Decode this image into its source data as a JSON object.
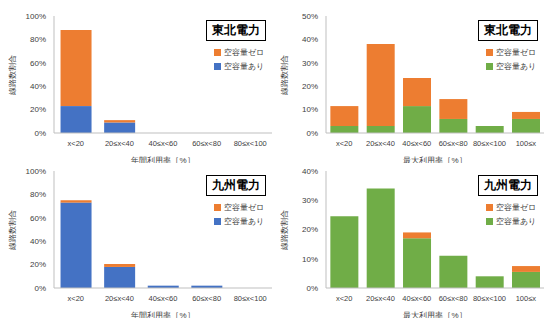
{
  "chart_data": [
    {
      "type": "bar",
      "title": "東北電力",
      "x_label": "年間利用率［%］",
      "y_label": "線路数割合",
      "categories": [
        "x<20",
        "20≤x<40",
        "40≤x<60",
        "60≤x<80",
        "80≤x<100"
      ],
      "series": [
        {
          "name": "空容量あり",
          "color": "#4472c4",
          "values": [
            23,
            9,
            0,
            0,
            0
          ]
        },
        {
          "name": "空容量ゼロ",
          "color": "#ed7d31",
          "values": [
            65,
            2,
            0,
            0,
            0
          ]
        }
      ],
      "ylim": [
        0,
        100
      ],
      "yticks": [
        {
          "value": 0,
          "label": "0%"
        },
        {
          "value": 20,
          "label": "20%"
        },
        {
          "value": 40,
          "label": "40%"
        },
        {
          "value": 60,
          "label": "60%"
        },
        {
          "value": 80,
          "label": "80%"
        },
        {
          "value": 100,
          "label": "100%"
        }
      ],
      "stacked": true,
      "legend": "upper right",
      "grid": false
    },
    {
      "type": "bar",
      "title": "東北電力",
      "x_label": "最大利用率［%］",
      "y_label": "線路数割合",
      "categories": [
        "x<20",
        "20≤x<40",
        "40≤x<60",
        "60≤x<80",
        "80≤x<100",
        "100≤x"
      ],
      "series": [
        {
          "name": "空容量あり",
          "color": "#70ad47",
          "values": [
            3,
            3,
            11.5,
            6,
            3,
            6
          ]
        },
        {
          "name": "空容量ゼロ",
          "color": "#ed7d31",
          "values": [
            8.5,
            35,
            12,
            8.5,
            0,
            3
          ]
        }
      ],
      "ylim": [
        0,
        50
      ],
      "yticks": [
        {
          "value": 0,
          "label": "0%"
        },
        {
          "value": 10,
          "label": "10%"
        },
        {
          "value": 20,
          "label": "20%"
        },
        {
          "value": 30,
          "label": "30%"
        },
        {
          "value": 40,
          "label": "40%"
        },
        {
          "value": 50,
          "label": "50%"
        }
      ],
      "stacked": true,
      "legend": "upper right",
      "grid": false
    },
    {
      "type": "bar",
      "title": "九州電力",
      "x_label": "年間利用率［%］",
      "y_label": "線路数割合",
      "categories": [
        "x<20",
        "20≤x<40",
        "40≤x<60",
        "60≤x<80",
        "80≤x<100"
      ],
      "series": [
        {
          "name": "空容量あり",
          "color": "#4472c4",
          "values": [
            73,
            18,
            2,
            2,
            0
          ]
        },
        {
          "name": "空容量ゼロ",
          "color": "#ed7d31",
          "values": [
            2,
            2.5,
            0,
            0,
            0
          ]
        }
      ],
      "ylim": [
        0,
        100
      ],
      "yticks": [
        {
          "value": 0,
          "label": "0%"
        },
        {
          "value": 20,
          "label": "20%"
        },
        {
          "value": 40,
          "label": "40%"
        },
        {
          "value": 60,
          "label": "60%"
        },
        {
          "value": 80,
          "label": "80%"
        },
        {
          "value": 100,
          "label": "100%"
        }
      ],
      "stacked": true,
      "legend": "upper right",
      "grid": false
    },
    {
      "type": "bar",
      "title": "九州電力",
      "x_label": "最大利用率［%］",
      "y_label": "線路数割合",
      "categories": [
        "x<20",
        "20≤x<40",
        "40≤x<60",
        "60≤x<80",
        "80≤x<100",
        "100≤x"
      ],
      "series": [
        {
          "name": "空容量あり",
          "color": "#70ad47",
          "values": [
            24.5,
            34,
            17,
            11,
            4,
            5.5
          ]
        },
        {
          "name": "空容量ゼロ",
          "color": "#ed7d31",
          "values": [
            0,
            0,
            2,
            0,
            0,
            2
          ]
        }
      ],
      "ylim": [
        0,
        40
      ],
      "yticks": [
        {
          "value": 0,
          "label": "0%"
        },
        {
          "value": 10,
          "label": "10%"
        },
        {
          "value": 20,
          "label": "20%"
        },
        {
          "value": 30,
          "label": "30%"
        },
        {
          "value": 40,
          "label": "40%"
        }
      ],
      "stacked": true,
      "legend": "upper right",
      "grid": false
    }
  ]
}
